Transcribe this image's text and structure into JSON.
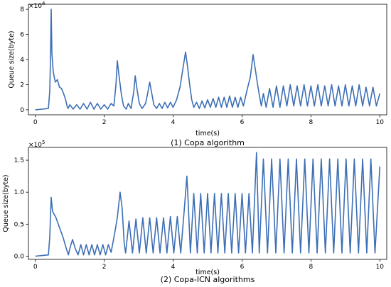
{
  "chart_data": [
    {
      "type": "line",
      "caption": "(1) Copa algorithm",
      "xlabel": "time(s)",
      "ylabel": "Queue size(byte)",
      "y_multiplier": "×10",
      "y_multiplier_exp": "4",
      "xlim": [
        -0.2,
        10.2
      ],
      "ylim": [
        -0.4,
        8.4
      ],
      "x_ticks": [
        0,
        2,
        4,
        6,
        8,
        10
      ],
      "x_tick_labels": [
        "0",
        "2",
        "4",
        "6",
        "8",
        "10"
      ],
      "y_ticks": [
        0,
        2,
        4,
        6,
        8
      ],
      "y_tick_labels": [
        "0",
        "2",
        "4",
        "6",
        "8"
      ],
      "series_color": "#3d6fb5",
      "series": [
        {
          "points": [
            [
              0.0,
              0.0
            ],
            [
              0.2,
              0.05
            ],
            [
              0.38,
              0.1
            ],
            [
              0.42,
              1.5
            ],
            [
              0.44,
              4.0
            ],
            [
              0.46,
              8.0
            ],
            [
              0.48,
              4.5
            ],
            [
              0.52,
              3.0
            ],
            [
              0.58,
              2.2
            ],
            [
              0.64,
              2.4
            ],
            [
              0.7,
              1.8
            ],
            [
              0.76,
              1.7
            ],
            [
              0.82,
              1.3
            ],
            [
              0.88,
              0.8
            ],
            [
              0.92,
              0.3
            ],
            [
              0.95,
              0.1
            ],
            [
              1.0,
              0.4
            ],
            [
              1.1,
              0.05
            ],
            [
              1.2,
              0.4
            ],
            [
              1.3,
              0.05
            ],
            [
              1.4,
              0.5
            ],
            [
              1.5,
              0.05
            ],
            [
              1.6,
              0.6
            ],
            [
              1.7,
              0.05
            ],
            [
              1.8,
              0.5
            ],
            [
              1.9,
              0.05
            ],
            [
              2.0,
              0.4
            ],
            [
              2.1,
              0.05
            ],
            [
              2.2,
              0.5
            ],
            [
              2.28,
              0.3
            ],
            [
              2.34,
              2.0
            ],
            [
              2.38,
              3.9
            ],
            [
              2.44,
              2.5
            ],
            [
              2.5,
              1.2
            ],
            [
              2.56,
              0.3
            ],
            [
              2.64,
              0.05
            ],
            [
              2.7,
              0.5
            ],
            [
              2.78,
              0.1
            ],
            [
              2.86,
              1.5
            ],
            [
              2.9,
              2.7
            ],
            [
              2.96,
              1.5
            ],
            [
              3.02,
              0.5
            ],
            [
              3.1,
              0.1
            ],
            [
              3.2,
              0.5
            ],
            [
              3.26,
              1.3
            ],
            [
              3.32,
              2.2
            ],
            [
              3.38,
              1.3
            ],
            [
              3.44,
              0.4
            ],
            [
              3.52,
              0.1
            ],
            [
              3.6,
              0.5
            ],
            [
              3.68,
              0.1
            ],
            [
              3.76,
              0.6
            ],
            [
              3.84,
              0.15
            ],
            [
              3.92,
              0.6
            ],
            [
              4.0,
              0.2
            ],
            [
              4.1,
              0.8
            ],
            [
              4.2,
              1.8
            ],
            [
              4.28,
              3.2
            ],
            [
              4.36,
              4.6
            ],
            [
              4.42,
              3.4
            ],
            [
              4.48,
              2.0
            ],
            [
              4.54,
              0.8
            ],
            [
              4.6,
              0.2
            ],
            [
              4.68,
              0.6
            ],
            [
              4.76,
              0.1
            ],
            [
              4.84,
              0.7
            ],
            [
              4.92,
              0.15
            ],
            [
              5.0,
              0.8
            ],
            [
              5.08,
              0.2
            ],
            [
              5.16,
              0.9
            ],
            [
              5.24,
              0.2
            ],
            [
              5.32,
              1.0
            ],
            [
              5.4,
              0.2
            ],
            [
              5.48,
              1.0
            ],
            [
              5.56,
              0.2
            ],
            [
              5.64,
              1.1
            ],
            [
              5.72,
              0.2
            ],
            [
              5.8,
              1.0
            ],
            [
              5.88,
              0.2
            ],
            [
              5.96,
              1.0
            ],
            [
              6.04,
              0.3
            ],
            [
              6.14,
              1.5
            ],
            [
              6.24,
              2.6
            ],
            [
              6.32,
              4.4
            ],
            [
              6.38,
              3.3
            ],
            [
              6.44,
              2.2
            ],
            [
              6.5,
              1.2
            ],
            [
              6.56,
              0.3
            ],
            [
              6.62,
              1.3
            ],
            [
              6.7,
              0.2
            ],
            [
              6.8,
              1.7
            ],
            [
              6.9,
              0.2
            ],
            [
              7.0,
              1.9
            ],
            [
              7.1,
              0.2
            ],
            [
              7.2,
              1.9
            ],
            [
              7.3,
              0.3
            ],
            [
              7.4,
              2.0
            ],
            [
              7.5,
              0.3
            ],
            [
              7.6,
              1.9
            ],
            [
              7.7,
              0.3
            ],
            [
              7.8,
              2.0
            ],
            [
              7.9,
              0.3
            ],
            [
              8.0,
              1.9
            ],
            [
              8.1,
              0.3
            ],
            [
              8.2,
              2.0
            ],
            [
              8.3,
              0.3
            ],
            [
              8.4,
              1.9
            ],
            [
              8.5,
              0.3
            ],
            [
              8.6,
              2.0
            ],
            [
              8.7,
              0.3
            ],
            [
              8.8,
              1.9
            ],
            [
              8.9,
              0.3
            ],
            [
              9.0,
              2.0
            ],
            [
              9.1,
              0.3
            ],
            [
              9.2,
              1.9
            ],
            [
              9.3,
              0.3
            ],
            [
              9.4,
              2.0
            ],
            [
              9.5,
              0.3
            ],
            [
              9.6,
              1.8
            ],
            [
              9.7,
              0.3
            ],
            [
              9.8,
              1.8
            ],
            [
              9.9,
              0.3
            ],
            [
              10.0,
              1.3
            ]
          ]
        }
      ]
    },
    {
      "type": "line",
      "caption": "(2) Copa-ICN algorithms",
      "xlabel": "time(s)",
      "ylabel": "Queue size(byte)",
      "y_multiplier": "×10",
      "y_multiplier_exp": "5",
      "xlim": [
        -0.2,
        10.2
      ],
      "ylim": [
        -0.05,
        1.7
      ],
      "x_ticks": [
        0,
        2,
        4,
        6,
        8,
        10
      ],
      "x_tick_labels": [
        "0",
        "2",
        "4",
        "6",
        "8",
        "10"
      ],
      "y_ticks": [
        0.0,
        0.5,
        1.0,
        1.5
      ],
      "y_tick_labels": [
        "0.0",
        "0.5",
        "1.0",
        "1.5"
      ],
      "series_color": "#3d6fb5",
      "series": [
        {
          "points": [
            [
              0.0,
              0.0
            ],
            [
              0.2,
              0.01
            ],
            [
              0.38,
              0.02
            ],
            [
              0.42,
              0.3
            ],
            [
              0.46,
              0.92
            ],
            [
              0.5,
              0.7
            ],
            [
              0.6,
              0.6
            ],
            [
              0.7,
              0.45
            ],
            [
              0.8,
              0.3
            ],
            [
              0.9,
              0.12
            ],
            [
              0.96,
              0.02
            ],
            [
              1.0,
              0.12
            ],
            [
              1.08,
              0.26
            ],
            [
              1.16,
              0.12
            ],
            [
              1.24,
              0.02
            ],
            [
              1.32,
              0.18
            ],
            [
              1.4,
              0.02
            ],
            [
              1.48,
              0.18
            ],
            [
              1.56,
              0.02
            ],
            [
              1.64,
              0.18
            ],
            [
              1.72,
              0.02
            ],
            [
              1.8,
              0.18
            ],
            [
              1.88,
              0.02
            ],
            [
              1.96,
              0.18
            ],
            [
              2.04,
              0.02
            ],
            [
              2.12,
              0.18
            ],
            [
              2.2,
              0.06
            ],
            [
              2.3,
              0.35
            ],
            [
              2.38,
              0.6
            ],
            [
              2.46,
              1.0
            ],
            [
              2.52,
              0.75
            ],
            [
              2.58,
              0.2
            ],
            [
              2.62,
              0.05
            ],
            [
              2.72,
              0.55
            ],
            [
              2.82,
              0.05
            ],
            [
              2.92,
              0.58
            ],
            [
              3.02,
              0.05
            ],
            [
              3.12,
              0.6
            ],
            [
              3.22,
              0.05
            ],
            [
              3.32,
              0.6
            ],
            [
              3.42,
              0.05
            ],
            [
              3.52,
              0.6
            ],
            [
              3.62,
              0.05
            ],
            [
              3.72,
              0.6
            ],
            [
              3.82,
              0.05
            ],
            [
              3.92,
              0.62
            ],
            [
              4.02,
              0.05
            ],
            [
              4.12,
              0.62
            ],
            [
              4.22,
              0.05
            ],
            [
              4.32,
              0.7
            ],
            [
              4.4,
              1.25
            ],
            [
              4.44,
              0.8
            ],
            [
              4.5,
              0.05
            ],
            [
              4.6,
              0.98
            ],
            [
              4.7,
              0.05
            ],
            [
              4.8,
              0.98
            ],
            [
              4.9,
              0.05
            ],
            [
              5.0,
              0.98
            ],
            [
              5.1,
              0.05
            ],
            [
              5.2,
              0.98
            ],
            [
              5.3,
              0.05
            ],
            [
              5.4,
              0.98
            ],
            [
              5.5,
              0.05
            ],
            [
              5.6,
              0.98
            ],
            [
              5.7,
              0.05
            ],
            [
              5.8,
              0.98
            ],
            [
              5.9,
              0.05
            ],
            [
              6.0,
              0.98
            ],
            [
              6.1,
              0.05
            ],
            [
              6.2,
              0.98
            ],
            [
              6.3,
              0.05
            ],
            [
              6.42,
              1.62
            ],
            [
              6.5,
              0.05
            ],
            [
              6.62,
              1.52
            ],
            [
              6.74,
              0.05
            ],
            [
              6.86,
              1.52
            ],
            [
              6.98,
              0.05
            ],
            [
              7.1,
              1.52
            ],
            [
              7.22,
              0.05
            ],
            [
              7.34,
              1.52
            ],
            [
              7.46,
              0.05
            ],
            [
              7.58,
              1.52
            ],
            [
              7.7,
              0.05
            ],
            [
              7.82,
              1.52
            ],
            [
              7.94,
              0.05
            ],
            [
              8.06,
              1.52
            ],
            [
              8.18,
              0.05
            ],
            [
              8.3,
              1.52
            ],
            [
              8.42,
              0.05
            ],
            [
              8.54,
              1.52
            ],
            [
              8.66,
              0.05
            ],
            [
              8.78,
              1.52
            ],
            [
              8.9,
              0.05
            ],
            [
              9.02,
              1.52
            ],
            [
              9.14,
              0.05
            ],
            [
              9.26,
              1.52
            ],
            [
              9.38,
              0.05
            ],
            [
              9.5,
              1.52
            ],
            [
              9.62,
              0.05
            ],
            [
              9.74,
              1.52
            ],
            [
              9.86,
              0.05
            ],
            [
              10.0,
              1.4
            ]
          ]
        }
      ]
    }
  ]
}
